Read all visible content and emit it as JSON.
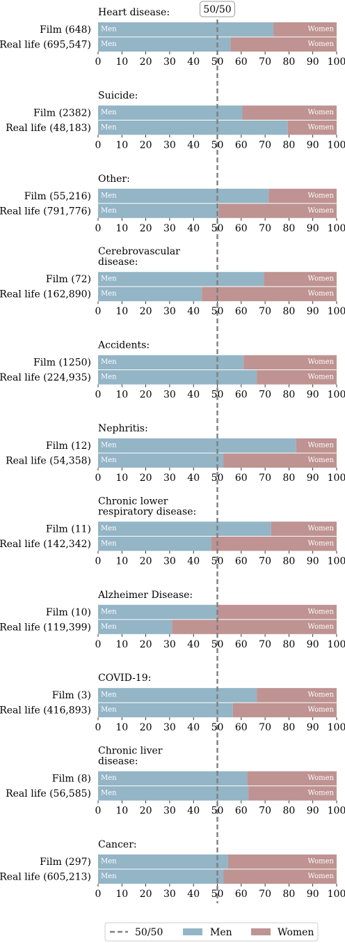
{
  "chart_data": {
    "type": "bar",
    "orientation": "horizontal-stacked-100",
    "ticks": [
      0,
      10,
      20,
      30,
      40,
      50,
      60,
      70,
      80,
      90,
      100
    ],
    "xlim": [
      0,
      100
    ],
    "reference_line": {
      "value": 50,
      "label": "50/50"
    },
    "segment_labels": {
      "men": "Men",
      "women": "Women"
    },
    "colors": {
      "men": "#93b5c6",
      "women": "#be9392",
      "reference": "#7f7f7f"
    },
    "legend": {
      "position": "bottom",
      "items": [
        {
          "name": "50/50",
          "kind": "line",
          "color": "#7f7f7f"
        },
        {
          "name": "Men",
          "kind": "patch",
          "color": "#93b5c6"
        },
        {
          "name": "Women",
          "kind": "patch",
          "color": "#be9392"
        }
      ]
    },
    "panels": [
      {
        "title": [
          "Heart disease:"
        ],
        "rows": [
          {
            "label": "Film  (648)",
            "men": 73.5
          },
          {
            "label": "Real life (695,547)",
            "men": 55.5
          }
        ]
      },
      {
        "title": [
          "Suicide:"
        ],
        "rows": [
          {
            "label": "Film  (2382)",
            "men": 60.5
          },
          {
            "label": "Real life (48,183)",
            "men": 79.5
          }
        ]
      },
      {
        "title": [
          "Other:"
        ],
        "rows": [
          {
            "label": "Film  (55,216)",
            "men": 71.5
          },
          {
            "label": "Real life (791,776)",
            "men": 50.5
          }
        ]
      },
      {
        "title": [
          "Cerebrovascular",
          "disease:"
        ],
        "rows": [
          {
            "label": "Film  (72)",
            "men": 69.5
          },
          {
            "label": "Real life (162,890)",
            "men": 43.5
          }
        ]
      },
      {
        "title": [
          "Accidents:"
        ],
        "rows": [
          {
            "label": "Film  (1250)",
            "men": 61.0
          },
          {
            "label": "Real life (224,935)",
            "men": 66.5
          }
        ]
      },
      {
        "title": [
          "Nephritis:"
        ],
        "rows": [
          {
            "label": "Film  (12)",
            "men": 83.0
          },
          {
            "label": "Real life (54,358)",
            "men": 52.5
          }
        ]
      },
      {
        "title": [
          "Chronic lower",
          "respiratory disease:"
        ],
        "rows": [
          {
            "label": "Film  (11)",
            "men": 72.5
          },
          {
            "label": "Real life (142,342)",
            "men": 47.5
          }
        ]
      },
      {
        "title": [
          "Alzheimer Disease:"
        ],
        "rows": [
          {
            "label": "Film  (10)",
            "men": 50.0
          },
          {
            "label": "Real life (119,399)",
            "men": 31.0
          }
        ]
      },
      {
        "title": [
          "COVID-19:"
        ],
        "rows": [
          {
            "label": "Film  (3)",
            "men": 66.5
          },
          {
            "label": "Real life (416,893)",
            "men": 56.5
          }
        ]
      },
      {
        "title": [
          "Chronic liver",
          "disease:"
        ],
        "rows": [
          {
            "label": "Film  (8)",
            "men": 62.5
          },
          {
            "label": "Real life (56,585)",
            "men": 63.0
          }
        ]
      },
      {
        "title": [
          "Cancer:"
        ],
        "rows": [
          {
            "label": "Film  (297)",
            "men": 54.5
          },
          {
            "label": "Real life (605,213)",
            "men": 52.5
          }
        ]
      }
    ]
  }
}
